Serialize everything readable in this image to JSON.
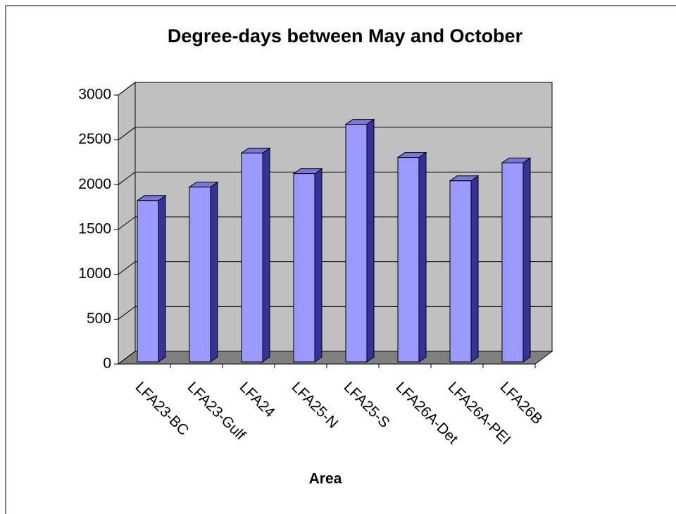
{
  "chart_data": {
    "type": "bar3d",
    "title": "Degree-days between May and October",
    "x_label": "Area",
    "categories": [
      "LFA23-BC",
      "LFA23-Gulf",
      "LFA24",
      "LFA25-N",
      "LFA25-S",
      "LFA26A-Det",
      "LFA26A-PEI",
      "LFA26B"
    ],
    "values": [
      1800,
      1950,
      2330,
      2100,
      2650,
      2280,
      2020,
      2220
    ],
    "color": "#9999ff",
    "ylim": [
      0,
      3000
    ],
    "yticks": [
      0,
      500,
      1000,
      1500,
      2000,
      2500,
      3000
    ],
    "grid": true
  }
}
